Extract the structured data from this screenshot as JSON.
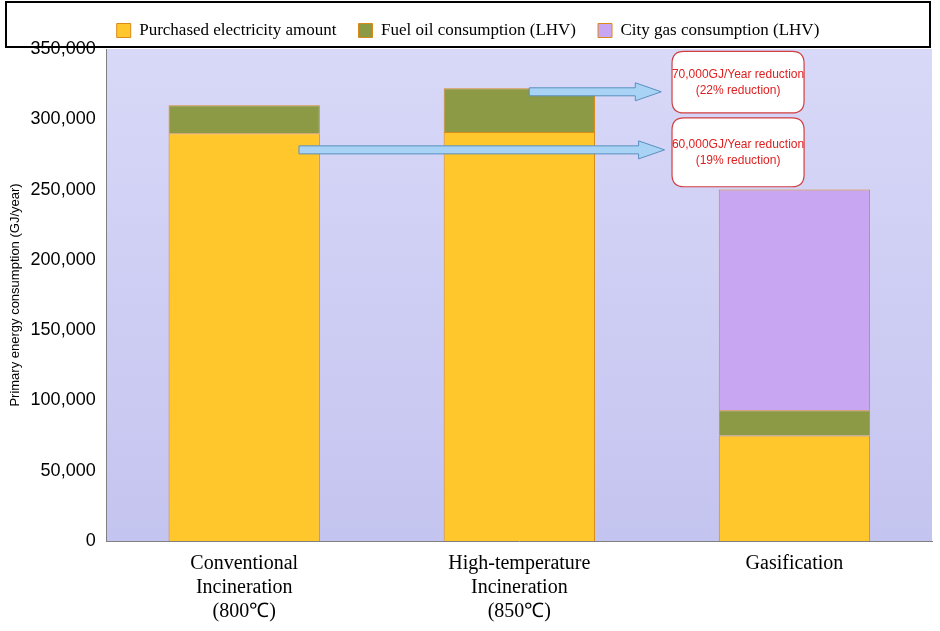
{
  "chart_data": {
    "type": "bar",
    "stacked": true,
    "y_label": "Primary energy consumption (GJ/year)",
    "categories": [
      [
        "Conventional",
        "Incineration",
        "(800℃)"
      ],
      [
        "High-temperature",
        "Incineration",
        "(850℃)"
      ],
      [
        "Gasification"
      ]
    ],
    "series": [
      {
        "name": "Purchased electricity amount",
        "color": "#ffc72c",
        "values": [
          290000,
          291000,
          75000
        ]
      },
      {
        "name": "Fuel oil consumption (LHV)",
        "color": "#8c9a45",
        "values": [
          20000,
          31000,
          18000
        ]
      },
      {
        "name": "City gas consumption (LHV)",
        "color": "#c9a6f2",
        "values": [
          0,
          0,
          157000
        ]
      }
    ],
    "ylim": [
      0,
      350000
    ],
    "yticks": [
      {
        "value": 0,
        "label": "0"
      },
      {
        "value": 50000,
        "label": "50,000"
      },
      {
        "value": 100000,
        "label": "100,000"
      },
      {
        "value": 150000,
        "label": "150,000"
      },
      {
        "value": 200000,
        "label": "200,000"
      },
      {
        "value": 250000,
        "label": "250,000"
      },
      {
        "value": 300000,
        "label": "300,000"
      },
      {
        "value": 350000,
        "label": "350,000"
      }
    ],
    "grid": false,
    "legend": "top",
    "data_labels": false,
    "annotations": [
      {
        "text": [
          "70,000GJ/Year reduction",
          "(22% reduction)"
        ]
      },
      {
        "text": [
          "60,000GJ/Year reduction",
          "(19% reduction)"
        ]
      }
    ]
  }
}
